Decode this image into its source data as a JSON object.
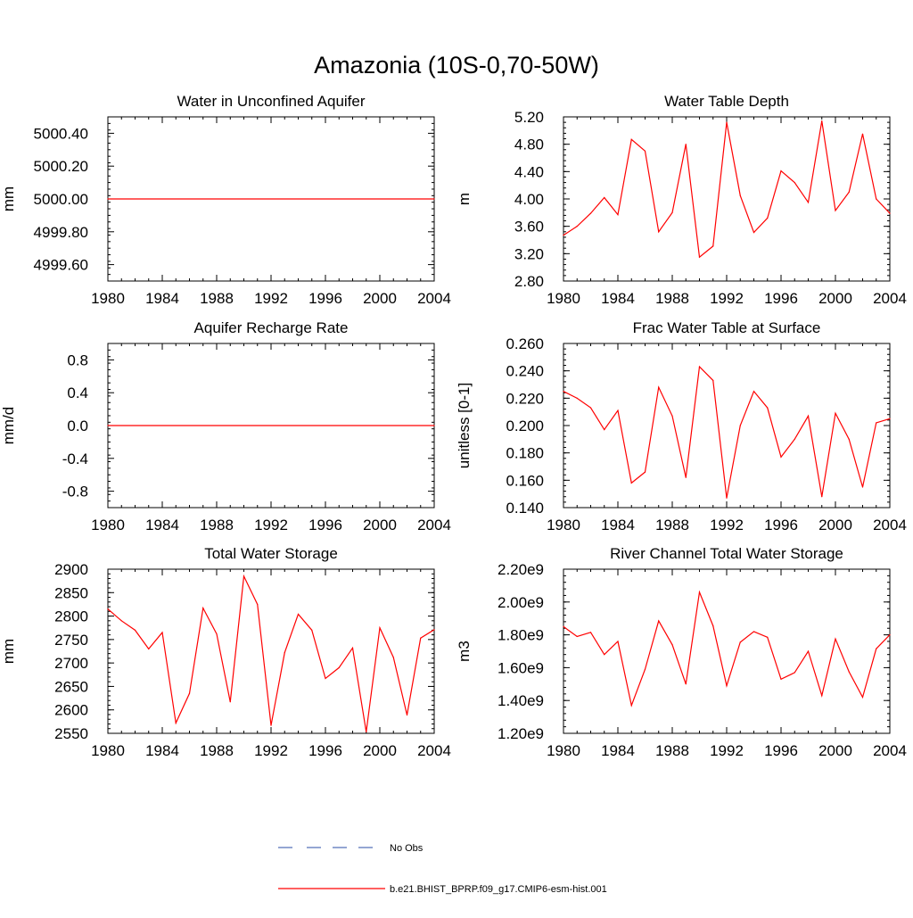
{
  "figure": {
    "title": "Amazonia (10S-0,70-50W)"
  },
  "colors": {
    "model_line": "#ff0000",
    "obs_line": "#4d6bb5",
    "axis": "#000000"
  },
  "legend": {
    "placement": "bottom-center",
    "entries": [
      {
        "label": "No Obs",
        "style": "dashed",
        "color": "#4d6bb5"
      },
      {
        "label": "b.e21.BHIST_BPRP.f09_g17.CMIP6-esm-hist.001",
        "style": "solid",
        "color": "#ff0000"
      }
    ]
  },
  "chart_data": [
    {
      "type": "line",
      "title": "Water in Unconfined Aquifer",
      "xlabel": "",
      "ylabel": "mm",
      "xlim": [
        1980,
        2004
      ],
      "ylim": [
        4999.5,
        5000.5
      ],
      "xticks": [
        1980,
        1984,
        1988,
        1992,
        1996,
        2000,
        2004
      ],
      "yticks": [
        4999.6,
        4999.8,
        5000.0,
        5000.2,
        5000.4
      ],
      "yticklabels": [
        "4999.60",
        "4999.80",
        "5000.00",
        "5000.20",
        "5000.40"
      ],
      "x": [
        1980,
        2004
      ],
      "series": [
        {
          "values": [
            5000.0,
            5000.0
          ]
        }
      ]
    },
    {
      "type": "line",
      "title": "Water Table Depth",
      "xlabel": "",
      "ylabel": "m",
      "xlim": [
        1980,
        2004
      ],
      "ylim": [
        2.8,
        5.2
      ],
      "xticks": [
        1980,
        1984,
        1988,
        1992,
        1996,
        2000,
        2004
      ],
      "yticks": [
        2.8,
        3.2,
        3.6,
        4.0,
        4.4,
        4.8,
        5.2
      ],
      "yticklabels": [
        "2.80",
        "3.20",
        "3.60",
        "4.00",
        "4.40",
        "4.80",
        "5.20"
      ],
      "x": [
        1980,
        1981,
        1982,
        1983,
        1984,
        1985,
        1986,
        1987,
        1988,
        1989,
        1990,
        1991,
        1992,
        1993,
        1994,
        1995,
        1996,
        1997,
        1998,
        1999,
        2000,
        2001,
        2002,
        2003,
        2004
      ],
      "series": [
        {
          "values": [
            3.47,
            3.6,
            3.79,
            4.02,
            3.77,
            4.87,
            4.7,
            3.52,
            3.8,
            4.8,
            3.15,
            3.31,
            5.12,
            4.05,
            3.51,
            3.72,
            4.41,
            4.24,
            3.95,
            5.14,
            3.83,
            4.1,
            4.95,
            4.0,
            3.79
          ]
        }
      ]
    },
    {
      "type": "line",
      "title": "Aquifer Recharge Rate",
      "xlabel": "",
      "ylabel": "mm/d",
      "xlim": [
        1980,
        2004
      ],
      "ylim": [
        -1.0,
        1.0
      ],
      "xticks": [
        1980,
        1984,
        1988,
        1992,
        1996,
        2000,
        2004
      ],
      "yticks": [
        -0.8,
        -0.4,
        0.0,
        0.4,
        0.8
      ],
      "yticklabels": [
        "-0.8",
        "-0.4",
        "0.0",
        "0.4",
        "0.8"
      ],
      "x": [
        1980,
        2004
      ],
      "series": [
        {
          "values": [
            0.0,
            0.0
          ]
        }
      ]
    },
    {
      "type": "line",
      "title": "Frac Water Table at Surface",
      "xlabel": "",
      "ylabel": "unitless [0-1]",
      "xlim": [
        1980,
        2004
      ],
      "ylim": [
        0.14,
        0.26
      ],
      "xticks": [
        1980,
        1984,
        1988,
        1992,
        1996,
        2000,
        2004
      ],
      "yticks": [
        0.14,
        0.16,
        0.18,
        0.2,
        0.22,
        0.24,
        0.26
      ],
      "yticklabels": [
        "0.140",
        "0.160",
        "0.180",
        "0.200",
        "0.220",
        "0.240",
        "0.260"
      ],
      "x": [
        1980,
        1981,
        1982,
        1983,
        1984,
        1985,
        1986,
        1987,
        1988,
        1989,
        1990,
        1991,
        1992,
        1993,
        1994,
        1995,
        1996,
        1997,
        1998,
        1999,
        2000,
        2001,
        2002,
        2003,
        2004
      ],
      "series": [
        {
          "values": [
            0.225,
            0.22,
            0.213,
            0.197,
            0.211,
            0.158,
            0.166,
            0.228,
            0.207,
            0.162,
            0.243,
            0.233,
            0.147,
            0.2,
            0.225,
            0.213,
            0.177,
            0.19,
            0.207,
            0.148,
            0.209,
            0.19,
            0.155,
            0.202,
            0.205
          ]
        }
      ]
    },
    {
      "type": "line",
      "title": "Total Water Storage",
      "xlabel": "",
      "ylabel": "mm",
      "xlim": [
        1980,
        2004
      ],
      "ylim": [
        2550,
        2900
      ],
      "xticks": [
        1980,
        1984,
        1988,
        1992,
        1996,
        2000,
        2004
      ],
      "yticks": [
        2550,
        2600,
        2650,
        2700,
        2750,
        2800,
        2850,
        2900
      ],
      "yticklabels": [
        "2550",
        "2600",
        "2650",
        "2700",
        "2750",
        "2800",
        "2850",
        "2900"
      ],
      "x": [
        1980,
        1981,
        1982,
        1983,
        1984,
        1985,
        1986,
        1987,
        1988,
        1989,
        1990,
        1991,
        1992,
        1993,
        1994,
        1995,
        1996,
        1997,
        1998,
        1999,
        2000,
        2001,
        2002,
        2003,
        2004
      ],
      "series": [
        {
          "values": [
            2815,
            2790,
            2770,
            2730,
            2765,
            2572,
            2635,
            2817,
            2762,
            2617,
            2885,
            2825,
            2567,
            2722,
            2804,
            2770,
            2667,
            2690,
            2732,
            2553,
            2775,
            2712,
            2589,
            2753,
            2771
          ]
        }
      ]
    },
    {
      "type": "line",
      "title": "River Channel Total Water Storage",
      "xlabel": "",
      "ylabel": "m3",
      "xlim": [
        1980,
        2004
      ],
      "ylim": [
        1200000000.0,
        2200000000.0
      ],
      "xticks": [
        1980,
        1984,
        1988,
        1992,
        1996,
        2000,
        2004
      ],
      "yticks": [
        1200000000.0,
        1400000000.0,
        1600000000.0,
        1800000000.0,
        2000000000.0,
        2200000000.0
      ],
      "yticklabels": [
        "1.20e9",
        "1.40e9",
        "1.60e9",
        "1.80e9",
        "2.00e9",
        "2.20e9"
      ],
      "x": [
        1980,
        1981,
        1982,
        1983,
        1984,
        1985,
        1986,
        1987,
        1988,
        1989,
        1990,
        1991,
        1992,
        1993,
        1994,
        1995,
        1996,
        1997,
        1998,
        1999,
        2000,
        2001,
        2002,
        2003,
        2004
      ],
      "series": [
        {
          "values": [
            1850000000.0,
            1790000000.0,
            1815000000.0,
            1680000000.0,
            1760000000.0,
            1370000000.0,
            1590000000.0,
            1885000000.0,
            1740000000.0,
            1500000000.0,
            2060000000.0,
            1855000000.0,
            1490000000.0,
            1755000000.0,
            1820000000.0,
            1785000000.0,
            1530000000.0,
            1570000000.0,
            1700000000.0,
            1430000000.0,
            1775000000.0,
            1575000000.0,
            1420000000.0,
            1715000000.0,
            1800000000.0
          ]
        }
      ]
    }
  ]
}
